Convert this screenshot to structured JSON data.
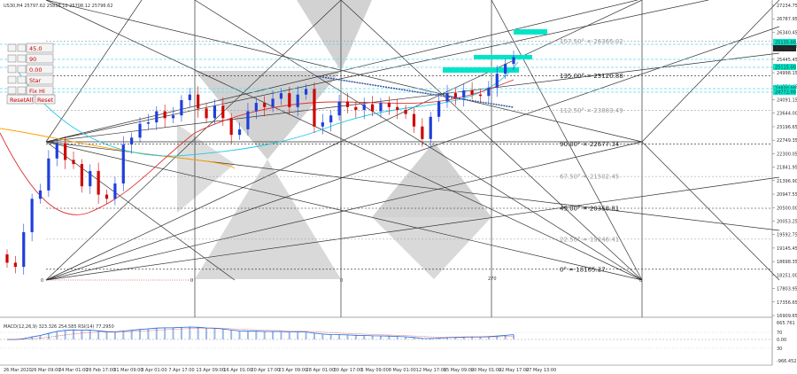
{
  "chart_data": {
    "type": "candlestick",
    "symbol_header": "US30,H4  25797.62 25838.12 25708.12 25796.62",
    "y_range": [
      16500,
      27724.75
    ],
    "price_ticks": [
      "27234.75",
      "26787.95",
      "26340.45",
      "25893.55",
      "25445.45",
      "24998.15",
      "24539.45",
      "24091.15",
      "23644.00",
      "23196.65",
      "22749.35",
      "22300.05",
      "21841.95",
      "21396.90",
      "20947.55",
      "20500.00",
      "20053.25",
      "19592.75",
      "19145.45",
      "18698.35",
      "18251.00",
      "17803.95",
      "17356.65",
      "16909.65"
    ],
    "time_labels": [
      "26 Mar 2020",
      "26 Mar 09:00",
      "24 Mar 01:00",
      "26 Feb 17:00",
      "31 Mar 09:00",
      "3 Apr 01:00",
      "7 Apr 17:00",
      "13 Apr 09:00",
      "16 Apr 01:00",
      "20 Apr 17:00",
      "23 Apr 09:00",
      "28 Apr 01:00",
      "30 Apr 17:00",
      "5 May 09:00",
      "8 May 01:00",
      "12 May 17:00",
      "15 May 09:00",
      "20 May 01:00",
      "22 May 17:00",
      "27 May 13:00"
    ],
    "current_price": 25796.62,
    "right_axis_markers": [
      "25796.62",
      "25135.00",
      "25115.00",
      "24830.00",
      "24772.00"
    ],
    "gann_levels": [
      {
        "label": "157.50° = 26365.02",
        "price": 26365.02,
        "color": "#999999"
      },
      {
        "label": "135.00° = 25120.88",
        "price": 25120.88,
        "color": "#222222"
      },
      {
        "label": "112.50° = 23883.49",
        "price": 23883.49,
        "color": "#999999"
      },
      {
        "label": "90.00° = 22677.34",
        "price": 22677.34,
        "color": "#222222"
      },
      {
        "label": "67.50° = 21502.45",
        "price": 21502.45,
        "color": "#999999"
      },
      {
        "label": "45.00° = 20358.81",
        "price": 20358.81,
        "color": "#222222"
      },
      {
        "label": "22.50° = 19246.41",
        "price": 19246.41,
        "color": "#999999"
      },
      {
        "label": "0° = 18165.27",
        "price": 18165.27,
        "color": "#222222"
      }
    ],
    "vertical_markers": [
      "0",
      "0",
      "270",
      "0"
    ],
    "close_series": [
      18400,
      18250,
      19500,
      20700,
      21000,
      22150,
      22700,
      22100,
      21950,
      21150,
      21700,
      20850,
      20700,
      21250,
      22650,
      22900,
      23400,
      23450,
      23850,
      23600,
      23700,
      24250,
      24450,
      23950,
      23600,
      24050,
      23600,
      23000,
      23200,
      23850,
      24150,
      24000,
      24300,
      24500,
      24000,
      24450,
      24650,
      23300,
      23450,
      23700,
      24200,
      24000,
      23900,
      24100,
      23850,
      24150,
      24000,
      23900,
      23750,
      23300,
      22850,
      23650,
      24200,
      24500,
      24350,
      24600,
      24450,
      24400,
      24700,
      25200,
      25550,
      25796.62
    ],
    "macd": {
      "label": "MACD(12,26,9) 323.326 254.585  RSI(14) 77.2950",
      "axis_ticks": [
        "665.761",
        "70",
        "0.00",
        "30",
        "-966.452"
      ]
    }
  },
  "panel": {
    "buttons": [
      {
        "id": "row1",
        "label": "45.0"
      },
      {
        "id": "row2",
        "label": "90"
      },
      {
        "id": "row3",
        "label": "0.00"
      },
      {
        "id": "row4",
        "label": "Star"
      },
      {
        "id": "row5",
        "label": "Fix HI"
      }
    ],
    "reset_all": "ResetAll",
    "reset": "Reset"
  },
  "colors": {
    "teal_level": "#00e5c8",
    "dashed_cyan": "#59d8f0",
    "triangle_gray": "#d2d2d2",
    "bull_candle": "#1f3fdb",
    "bear_candle": "#d00000",
    "ma_red": "#e03030",
    "ma_cyan": "#22c8e0",
    "ma_orange": "#ffa000",
    "trend_blue": "#3050a0"
  }
}
